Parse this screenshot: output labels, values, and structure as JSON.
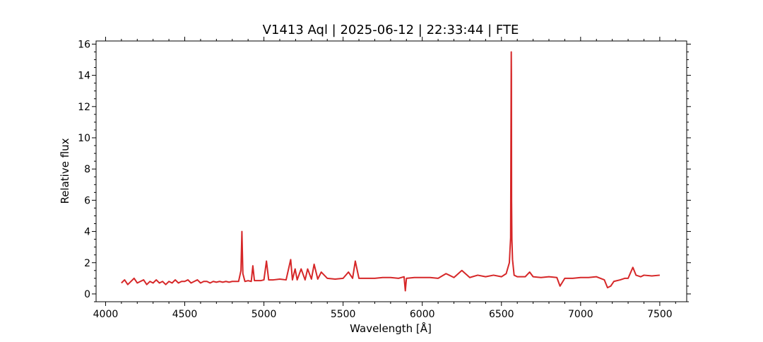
{
  "chart_data": {
    "type": "line",
    "title": "V1413 Aql | 2025-06-12 | 22:33:44 | FTE",
    "xlabel": "Wavelength [Å]",
    "ylabel": "Relative flux",
    "xlim": [
      3940,
      7670
    ],
    "ylim": [
      -0.5,
      16.2
    ],
    "x_ticks": [
      4000,
      4500,
      5000,
      5500,
      6000,
      6500,
      7000,
      7500
    ],
    "x_tick_labels": [
      "4000",
      "4500",
      "5000",
      "5500",
      "6000",
      "6500",
      "7000",
      "7500"
    ],
    "y_ticks": [
      0,
      2,
      4,
      6,
      8,
      10,
      12,
      14,
      16
    ],
    "y_tick_labels": [
      "0",
      "2",
      "4",
      "6",
      "8",
      "10",
      "12",
      "14",
      "16"
    ],
    "grid": false,
    "line_color": "#d62728",
    "series": [
      {
        "x": [
          4100,
          4120,
          4140,
          4160,
          4180,
          4200,
          4220,
          4240,
          4260,
          4280,
          4300,
          4320,
          4340,
          4360,
          4380,
          4400,
          4420,
          4440,
          4460,
          4480,
          4500,
          4520,
          4540,
          4560,
          4580,
          4600,
          4620,
          4640,
          4660,
          4680,
          4700,
          4720,
          4740,
          4760,
          4780,
          4800,
          4820,
          4840,
          4855,
          4861,
          4867,
          4880,
          4900,
          4920,
          4930,
          4940,
          4960,
          4980,
          5000,
          5016,
          5030,
          5060,
          5100,
          5140,
          5169,
          5180,
          5197,
          5210,
          5235,
          5260,
          5276,
          5300,
          5317,
          5340,
          5362,
          5400,
          5450,
          5500,
          5534,
          5560,
          5577,
          5600,
          5650,
          5700,
          5750,
          5800,
          5850,
          5885,
          5893,
          5900,
          5950,
          6000,
          6050,
          6100,
          6150,
          6200,
          6250,
          6300,
          6350,
          6400,
          6450,
          6500,
          6530,
          6550,
          6558,
          6562,
          6563,
          6564,
          6566,
          6570,
          6580,
          6600,
          6650,
          6678,
          6700,
          6750,
          6800,
          6850,
          6870,
          6900,
          6950,
          7000,
          7050,
          7100,
          7150,
          7170,
          7190,
          7210,
          7250,
          7280,
          7300,
          7330,
          7350,
          7380,
          7400,
          7450,
          7500
        ],
        "y": [
          0.7,
          0.9,
          0.6,
          0.8,
          1.0,
          0.7,
          0.8,
          0.9,
          0.6,
          0.8,
          0.7,
          0.9,
          0.7,
          0.8,
          0.6,
          0.8,
          0.7,
          0.9,
          0.7,
          0.8,
          0.8,
          0.9,
          0.7,
          0.8,
          0.9,
          0.7,
          0.8,
          0.8,
          0.7,
          0.8,
          0.75,
          0.8,
          0.75,
          0.8,
          0.75,
          0.8,
          0.8,
          0.8,
          1.5,
          4.0,
          1.3,
          0.8,
          0.85,
          0.8,
          1.8,
          0.85,
          0.85,
          0.85,
          0.9,
          2.1,
          0.9,
          0.9,
          0.95,
          0.9,
          2.2,
          0.9,
          1.6,
          0.9,
          1.6,
          0.9,
          1.6,
          0.95,
          1.9,
          0.95,
          1.4,
          1.0,
          0.95,
          1.0,
          1.4,
          1.0,
          2.1,
          1.0,
          1.0,
          1.0,
          1.05,
          1.05,
          1.0,
          1.1,
          0.2,
          1.0,
          1.05,
          1.05,
          1.05,
          1.0,
          1.3,
          1.05,
          1.5,
          1.05,
          1.2,
          1.1,
          1.2,
          1.1,
          1.3,
          2.0,
          3.6,
          15.5,
          14.0,
          6.0,
          3.5,
          2.2,
          1.2,
          1.1,
          1.1,
          1.4,
          1.1,
          1.05,
          1.1,
          1.05,
          0.5,
          1.0,
          1.0,
          1.05,
          1.05,
          1.1,
          0.9,
          0.4,
          0.5,
          0.8,
          0.9,
          1.0,
          1.0,
          1.7,
          1.2,
          1.1,
          1.2,
          1.15,
          1.2
        ]
      }
    ]
  }
}
